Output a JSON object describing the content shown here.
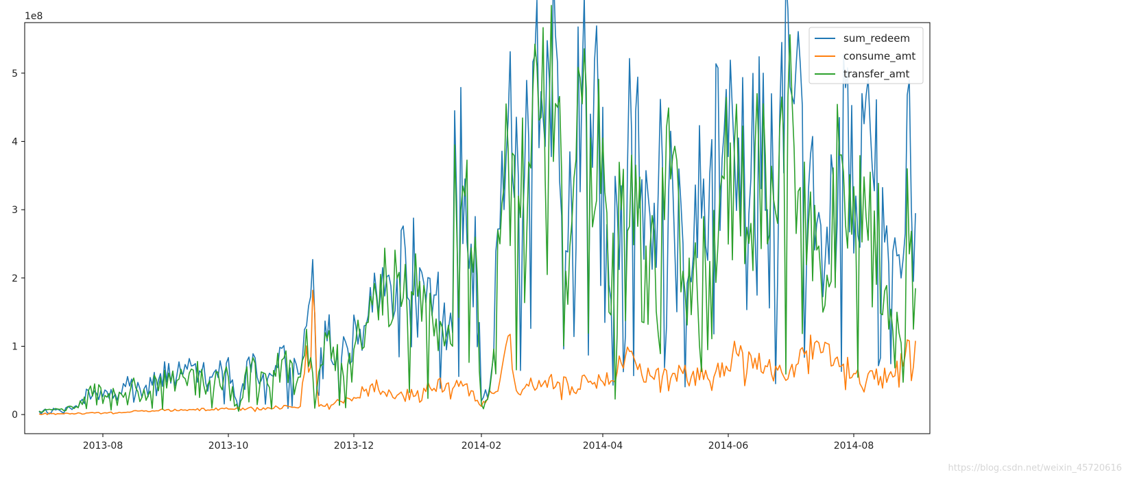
{
  "chart_data": {
    "type": "line",
    "title": "",
    "xlabel": "",
    "ylabel": "",
    "y_offset_text": "1e8",
    "x_tick_labels": [
      "2013-08",
      "2013-10",
      "2013-12",
      "2014-02",
      "2014-04",
      "2014-06",
      "2014-08"
    ],
    "x_tick_dates": [
      "2013-08-01",
      "2013-10-01",
      "2013-12-01",
      "2014-02-01",
      "2014-04-01",
      "2014-06-01",
      "2014-08-01"
    ],
    "xlim": [
      "2013-06-24",
      "2014-09-07"
    ],
    "y_tick_labels": [
      "0",
      "1",
      "2",
      "3",
      "4",
      "5"
    ],
    "y_tick_values": [
      0,
      1,
      2,
      3,
      4,
      5
    ],
    "ylim": [
      -0.28,
      5.74
    ],
    "grid": false,
    "legend": "top-right",
    "series": [
      {
        "name": "sum_redeem",
        "color": "#1f77b4",
        "points": [
          [
            "2013-07-01",
            0.05
          ],
          [
            "2013-07-10",
            0.08
          ],
          [
            "2013-07-20",
            0.1
          ],
          [
            "2013-07-25",
            0.35
          ],
          [
            "2013-08-10",
            0.3
          ],
          [
            "2013-08-15",
            0.52
          ],
          [
            "2013-08-20",
            0.25
          ],
          [
            "2013-08-29",
            0.6
          ],
          [
            "2013-09-06",
            0.58
          ],
          [
            "2013-09-14",
            0.72
          ],
          [
            "2013-09-22",
            0.55
          ],
          [
            "2013-09-30",
            0.75
          ],
          [
            "2013-10-06",
            0.05
          ],
          [
            "2013-10-10",
            0.78
          ],
          [
            "2013-10-20",
            0.52
          ],
          [
            "2013-10-27",
            0.97
          ],
          [
            "2013-11-05",
            0.6
          ],
          [
            "2013-11-08",
            1.3
          ],
          [
            "2013-11-11",
            2.27
          ],
          [
            "2013-11-13",
            0.35
          ],
          [
            "2013-11-17",
            1.37
          ],
          [
            "2013-11-25",
            0.82
          ],
          [
            "2013-12-04",
            1.25
          ],
          [
            "2013-12-08",
            1.45
          ],
          [
            "2013-12-17",
            2.02
          ],
          [
            "2013-12-26",
            2.42
          ],
          [
            "2014-01-02",
            2.15
          ],
          [
            "2014-01-10",
            1.75
          ],
          [
            "2014-01-18",
            1.2
          ],
          [
            "2014-01-19",
            4.45
          ],
          [
            "2014-01-24",
            3.45
          ],
          [
            "2014-01-29",
            2.9
          ],
          [
            "2014-02-01",
            0.2
          ],
          [
            "2014-02-05",
            0.4
          ],
          [
            "2014-02-10",
            2.72
          ],
          [
            "2014-02-14",
            4.3
          ],
          [
            "2014-02-19",
            3.45
          ],
          [
            "2014-02-24",
            4.05
          ],
          [
            "2014-03-02",
            4.73
          ],
          [
            "2014-03-06",
            4.92
          ],
          [
            "2014-03-10",
            5.15
          ],
          [
            "2014-03-14",
            2.4
          ],
          [
            "2014-03-22",
            5.0
          ],
          [
            "2014-03-26",
            4.4
          ],
          [
            "2014-04-01",
            4.5
          ],
          [
            "2014-04-04",
            1.9
          ],
          [
            "2014-04-10",
            3.35
          ],
          [
            "2014-04-15",
            4.15
          ],
          [
            "2014-04-24",
            2.9
          ],
          [
            "2014-05-04",
            4.15
          ],
          [
            "2014-05-10",
            2.5
          ],
          [
            "2014-05-20",
            3.45
          ],
          [
            "2014-05-30",
            4.15
          ],
          [
            "2014-06-06",
            4.05
          ],
          [
            "2014-06-12",
            3.45
          ],
          [
            "2014-06-18",
            5.0
          ],
          [
            "2014-06-20",
            3.0
          ],
          [
            "2014-06-27",
            5.45
          ],
          [
            "2014-07-03",
            4.55
          ],
          [
            "2014-07-10",
            3.3
          ],
          [
            "2014-07-18",
            2.2
          ],
          [
            "2014-07-25",
            4.35
          ],
          [
            "2014-08-02",
            3.2
          ],
          [
            "2014-08-09",
            4.2
          ],
          [
            "2014-08-18",
            2.2
          ],
          [
            "2014-08-24",
            2.0
          ],
          [
            "2014-08-27",
            4.68
          ],
          [
            "2014-08-30",
            1.95
          ],
          [
            "2014-08-31",
            2.95
          ]
        ]
      },
      {
        "name": "consume_amt",
        "color": "#ff7f0e",
        "points": [
          [
            "2013-07-01",
            0.01
          ],
          [
            "2013-08-01",
            0.02
          ],
          [
            "2013-09-01",
            0.07
          ],
          [
            "2013-10-01",
            0.08
          ],
          [
            "2013-10-20",
            0.1
          ],
          [
            "2013-11-05",
            0.12
          ],
          [
            "2013-11-11",
            1.82
          ],
          [
            "2013-11-14",
            0.12
          ],
          [
            "2013-12-01",
            0.25
          ],
          [
            "2013-12-10",
            0.45
          ],
          [
            "2013-12-20",
            0.25
          ],
          [
            "2014-01-01",
            0.35
          ],
          [
            "2014-01-15",
            0.45
          ],
          [
            "2014-01-25",
            0.45
          ],
          [
            "2014-02-01",
            0.12
          ],
          [
            "2014-02-10",
            0.5
          ],
          [
            "2014-02-14",
            1.15
          ],
          [
            "2014-02-18",
            0.35
          ],
          [
            "2014-03-01",
            0.5
          ],
          [
            "2014-03-15",
            0.45
          ],
          [
            "2014-04-01",
            0.48
          ],
          [
            "2014-04-12",
            0.85
          ],
          [
            "2014-04-25",
            0.55
          ],
          [
            "2014-05-10",
            0.6
          ],
          [
            "2014-05-25",
            0.55
          ],
          [
            "2014-06-05",
            0.9
          ],
          [
            "2014-06-20",
            0.7
          ],
          [
            "2014-07-01",
            0.65
          ],
          [
            "2014-07-15",
            1.05
          ],
          [
            "2014-08-01",
            0.6
          ],
          [
            "2014-08-20",
            0.55
          ],
          [
            "2014-08-28",
            1.08
          ],
          [
            "2014-08-30",
            0.7
          ],
          [
            "2014-08-31",
            1.08
          ]
        ]
      },
      {
        "name": "transfer_amt",
        "color": "#2ca02c",
        "points": [
          [
            "2013-07-01",
            0.05
          ],
          [
            "2013-07-10",
            0.08
          ],
          [
            "2013-07-20",
            0.1
          ],
          [
            "2013-07-25",
            0.35
          ],
          [
            "2013-08-10",
            0.3
          ],
          [
            "2013-08-15",
            0.45
          ],
          [
            "2013-08-20",
            0.25
          ],
          [
            "2013-08-29",
            0.55
          ],
          [
            "2013-09-06",
            0.5
          ],
          [
            "2013-09-14",
            0.65
          ],
          [
            "2013-09-22",
            0.5
          ],
          [
            "2013-09-30",
            0.7
          ],
          [
            "2013-10-06",
            0.05
          ],
          [
            "2013-10-10",
            0.7
          ],
          [
            "2013-10-20",
            0.45
          ],
          [
            "2013-10-27",
            0.8
          ],
          [
            "2013-11-05",
            0.55
          ],
          [
            "2013-11-08",
            1.25
          ],
          [
            "2013-11-11",
            0.6
          ],
          [
            "2013-11-13",
            0.35
          ],
          [
            "2013-11-17",
            1.2
          ],
          [
            "2013-11-25",
            0.75
          ],
          [
            "2013-12-04",
            1.15
          ],
          [
            "2013-12-08",
            1.35
          ],
          [
            "2013-12-17",
            1.9
          ],
          [
            "2013-12-26",
            2.2
          ],
          [
            "2014-01-02",
            1.95
          ],
          [
            "2014-01-10",
            1.4
          ],
          [
            "2014-01-18",
            1.0
          ],
          [
            "2014-01-19",
            3.95
          ],
          [
            "2014-01-24",
            3.2
          ],
          [
            "2014-01-29",
            2.6
          ],
          [
            "2014-02-01",
            0.15
          ],
          [
            "2014-02-05",
            0.35
          ],
          [
            "2014-02-10",
            2.5
          ],
          [
            "2014-02-14",
            3.9
          ],
          [
            "2014-02-19",
            3.2
          ],
          [
            "2014-02-24",
            3.7
          ],
          [
            "2014-03-02",
            4.35
          ],
          [
            "2014-03-06",
            4.5
          ],
          [
            "2014-03-10",
            4.5
          ],
          [
            "2014-03-14",
            2.1
          ],
          [
            "2014-03-22",
            4.55
          ],
          [
            "2014-03-26",
            4.05
          ],
          [
            "2014-04-01",
            4.05
          ],
          [
            "2014-04-04",
            1.5
          ],
          [
            "2014-04-10",
            3.0
          ],
          [
            "2014-04-15",
            3.8
          ],
          [
            "2014-04-24",
            2.45
          ],
          [
            "2014-05-04",
            3.45
          ],
          [
            "2014-05-10",
            2.1
          ],
          [
            "2014-05-20",
            2.9
          ],
          [
            "2014-05-30",
            3.45
          ],
          [
            "2014-06-06",
            3.4
          ],
          [
            "2014-06-12",
            2.8
          ],
          [
            "2014-06-18",
            4.55
          ],
          [
            "2014-06-20",
            2.5
          ],
          [
            "2014-06-27",
            4.65
          ],
          [
            "2014-07-03",
            3.9
          ],
          [
            "2014-07-10",
            2.8
          ],
          [
            "2014-07-18",
            1.6
          ],
          [
            "2014-07-25",
            3.8
          ],
          [
            "2014-08-02",
            2.6
          ],
          [
            "2014-08-09",
            3.55
          ],
          [
            "2014-08-18",
            1.25
          ],
          [
            "2014-08-24",
            1.05
          ],
          [
            "2014-08-27",
            3.6
          ],
          [
            "2014-08-30",
            1.25
          ],
          [
            "2014-08-31",
            1.85
          ]
        ]
      }
    ]
  },
  "watermark": "https://blog.csdn.net/weixin_45720616"
}
